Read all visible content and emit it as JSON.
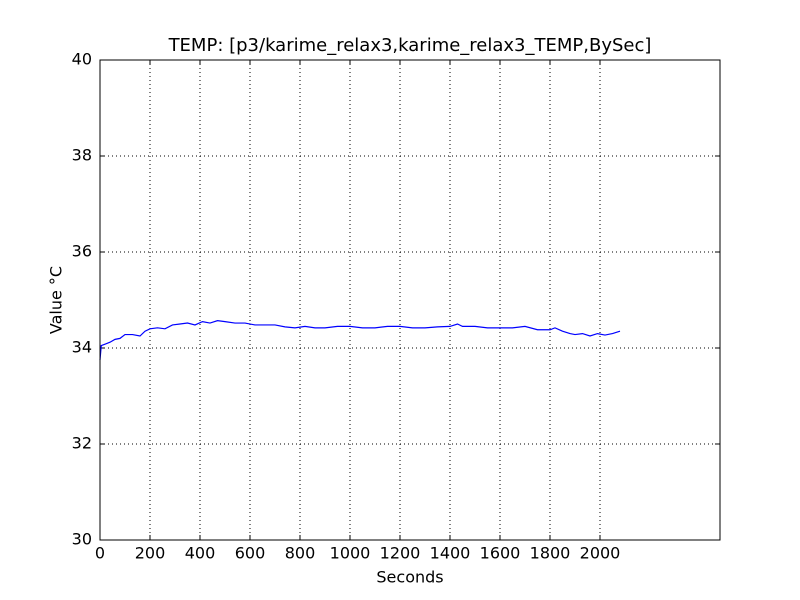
{
  "chart_data": {
    "type": "line",
    "title": "TEMP: [p3/karime_relax3,karime_relax3_TEMP,BySec]",
    "x_label": "Seconds",
    "y_label": "Value °C",
    "x": [
      0,
      5,
      20,
      40,
      60,
      80,
      100,
      130,
      160,
      180,
      200,
      230,
      260,
      290,
      320,
      350,
      380,
      410,
      440,
      470,
      500,
      540,
      580,
      620,
      660,
      700,
      740,
      780,
      820,
      860,
      900,
      950,
      1000,
      1050,
      1100,
      1150,
      1200,
      1250,
      1300,
      1350,
      1400,
      1430,
      1450,
      1500,
      1550,
      1600,
      1650,
      1700,
      1750,
      1800,
      1820,
      1850,
      1880,
      1900,
      1930,
      1960,
      1990,
      2020,
      2050,
      2080
    ],
    "series": [
      {
        "name": "TEMP",
        "color": "#0000ff",
        "values": [
          33.75,
          34.05,
          34.08,
          34.12,
          34.18,
          34.2,
          34.28,
          34.28,
          34.25,
          34.35,
          34.4,
          34.42,
          34.4,
          34.48,
          34.5,
          34.52,
          34.48,
          34.55,
          34.52,
          34.57,
          34.55,
          34.52,
          34.52,
          34.48,
          34.48,
          34.48,
          34.44,
          34.42,
          34.45,
          34.42,
          34.42,
          34.45,
          34.45,
          34.42,
          34.42,
          34.45,
          34.45,
          34.42,
          34.42,
          34.44,
          34.45,
          34.5,
          34.45,
          34.45,
          34.42,
          34.42,
          34.42,
          34.45,
          34.38,
          34.38,
          34.42,
          34.35,
          34.3,
          34.28,
          34.3,
          34.25,
          34.3,
          34.27,
          34.3,
          34.35
        ]
      }
    ],
    "xlim": [
      0,
      2480
    ],
    "xticks": [
      0,
      200,
      400,
      600,
      800,
      1000,
      1200,
      1400,
      1600,
      1800,
      2000
    ],
    "ylim": [
      30,
      40
    ],
    "yticks": [
      30,
      32,
      34,
      36,
      38,
      40
    ],
    "grid": true
  }
}
